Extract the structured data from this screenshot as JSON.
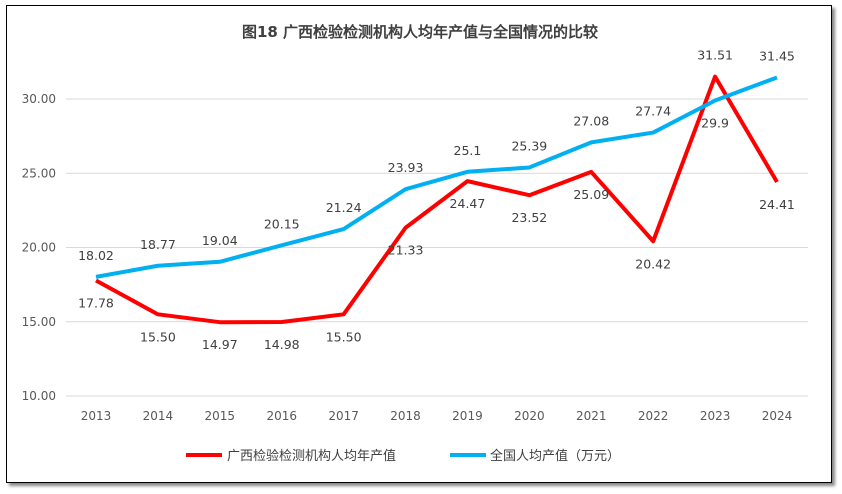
{
  "chart_data": {
    "type": "line",
    "title": "图18  广西检验检测机构人均年产值与全国情况的比较",
    "categories": [
      "2013",
      "2014",
      "2015",
      "2016",
      "2017",
      "2018",
      "2019",
      "2020",
      "2021",
      "2022",
      "2023",
      "2024"
    ],
    "ylim": [
      10,
      33
    ],
    "yticks": [
      "10.00",
      "15.00",
      "20.00",
      "25.00",
      "30.00"
    ],
    "grid": true,
    "legend_position": "bottom",
    "series": [
      {
        "name": "广西检验检测机构人均年产值",
        "color": "#FF0000",
        "values": [
          17.78,
          15.5,
          14.97,
          14.98,
          15.5,
          21.33,
          24.47,
          23.52,
          25.09,
          20.42,
          31.51,
          24.41
        ],
        "labels": [
          "17.78",
          "15.50",
          "14.97",
          "14.98",
          "15.50",
          "21.33",
          "24.47",
          "23.52",
          "25.09",
          "20.42",
          "31.51",
          "24.41"
        ]
      },
      {
        "name": "全国人均产值（万元）",
        "color": "#00B0F0",
        "values": [
          18.02,
          18.77,
          19.04,
          20.15,
          21.24,
          23.93,
          25.1,
          25.39,
          27.08,
          27.74,
          29.9,
          31.45
        ],
        "labels": [
          "18.02",
          "18.77",
          "19.04",
          "20.15",
          "21.24",
          "23.93",
          "25.1",
          "25.39",
          "27.08",
          "27.74",
          "29.9",
          "31.45"
        ]
      }
    ]
  }
}
